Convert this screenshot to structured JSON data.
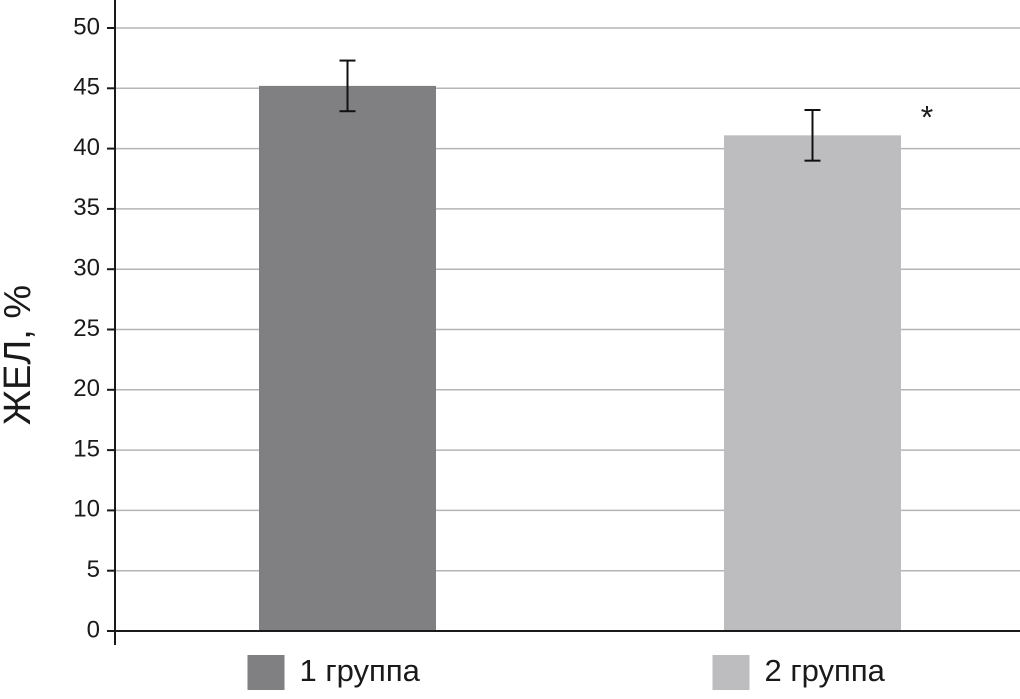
{
  "chart_data": {
    "type": "bar",
    "ylabel": "ЖЕЛ, %",
    "categories": [
      "1 группа",
      "2 группа"
    ],
    "values": [
      45.2,
      41.1
    ],
    "errors": [
      2.1,
      2.1
    ],
    "colors": [
      "#808083",
      "#bdbdbf"
    ],
    "annotation": "*",
    "ylim": [
      0,
      50
    ],
    "yticks": [
      0,
      5,
      10,
      15,
      20,
      25,
      30,
      35,
      40,
      45,
      50
    ],
    "grid": true
  }
}
